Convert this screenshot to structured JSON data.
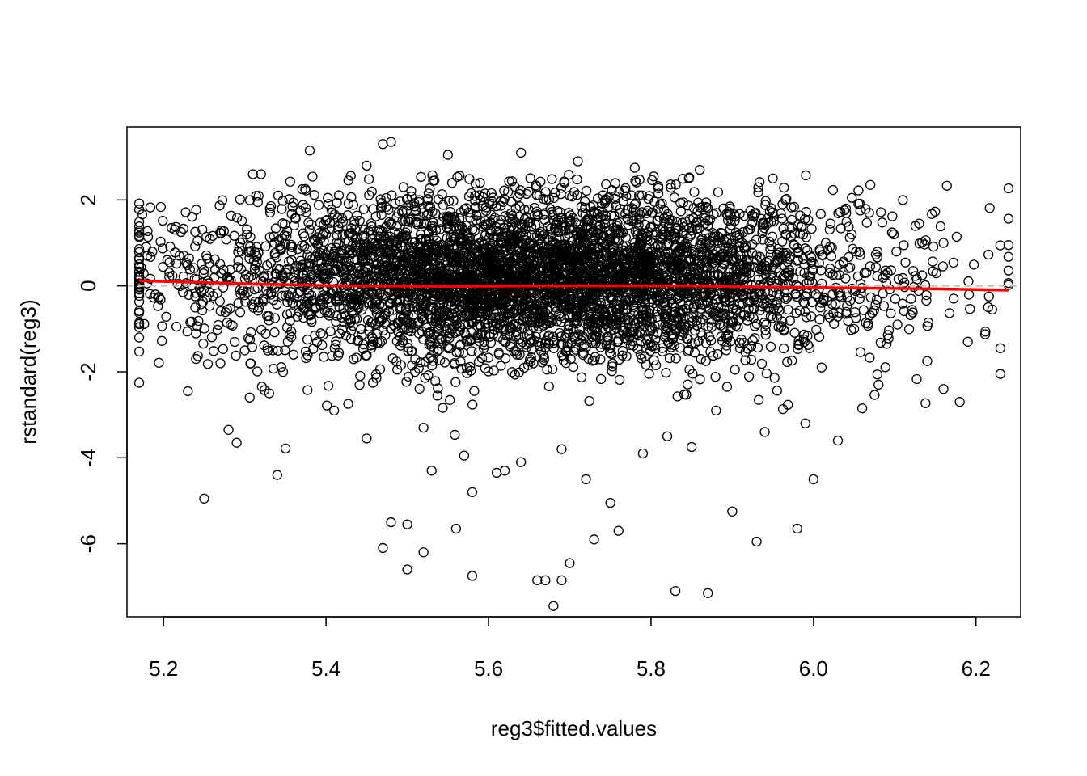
{
  "chart_data": {
    "type": "scatter",
    "title": "",
    "xlabel": "reg3$fitted.values",
    "ylabel": "rstandard(reg3)",
    "xlim": [
      5.155,
      6.255
    ],
    "ylim": [
      -7.7,
      3.7
    ],
    "x_ticks": [
      5.2,
      5.4,
      5.6,
      5.8,
      6.0,
      6.2
    ],
    "x_tick_labels": [
      "5.2",
      "5.4",
      "5.6",
      "5.8",
      "6.0",
      "6.2"
    ],
    "y_ticks": [
      -6,
      -4,
      -2,
      0,
      2
    ],
    "y_tick_labels": [
      "-6",
      "-4",
      "-2",
      "0",
      "2"
    ],
    "reference_line": {
      "y": 0,
      "style": "dashed",
      "color": "#bebebe"
    },
    "smooth_line": {
      "color": "#ff0000",
      "x": [
        5.17,
        5.3,
        5.42,
        5.55,
        5.7,
        5.85,
        5.95,
        6.05,
        6.15,
        6.24
      ],
      "y": [
        0.12,
        0.05,
        0.0,
        -0.01,
        0.0,
        0.0,
        -0.03,
        -0.05,
        -0.07,
        -0.1
      ]
    },
    "point_style": {
      "shape": "open-circle",
      "color": "#000000"
    },
    "points": {
      "x": [
        5.25,
        5.34,
        5.52,
        5.53,
        5.5,
        5.47,
        5.58,
        5.66,
        5.67,
        5.68,
        5.69,
        5.7,
        5.73,
        5.75,
        5.83,
        5.87,
        5.93,
        5.98,
        6.0,
        5.9,
        5.76,
        5.62,
        5.56,
        5.58,
        5.48,
        5.5,
        5.29,
        5.28,
        5.23,
        6.23,
        6.23,
        6.18,
        6.16,
        6.06,
        6.08,
        6.09,
        6.14,
        6.19,
        6.22,
        6.24,
        6.07,
        5.47,
        5.48,
        5.38,
        5.31,
        5.32,
        5.21,
        5.18,
        5.17,
        5.17,
        5.19,
        5.24,
        5.27,
        5.3,
        5.33,
        5.41,
        5.45,
        5.52,
        5.57,
        5.61,
        5.64,
        5.69,
        5.72,
        5.79,
        5.82,
        5.85,
        5.88,
        5.94,
        5.99,
        6.01,
        6.03,
        6.05,
        6.11,
        6.13,
        6.16,
        5.36,
        5.45,
        5.55,
        5.64,
        5.71,
        5.78,
        5.86,
        5.95,
        5.4,
        5.6,
        5.8,
        6.02,
        6.12
      ],
      "y": [
        -4.95,
        -4.4,
        -6.2,
        -4.3,
        -6.6,
        -6.1,
        -6.75,
        -6.85,
        -6.85,
        -7.45,
        -6.85,
        -6.45,
        -5.9,
        -5.05,
        -7.1,
        -7.15,
        -5.95,
        -5.65,
        -4.5,
        -5.25,
        -5.7,
        -4.3,
        -5.65,
        -4.8,
        -5.5,
        -5.55,
        -3.65,
        -3.35,
        -2.45,
        -2.05,
        -1.45,
        -2.7,
        -2.4,
        -2.85,
        -2.3,
        -1.35,
        -1.75,
        -1.3,
        -0.55,
        0.95,
        2.35,
        3.3,
        3.35,
        3.15,
        2.6,
        2.6,
        1.35,
        0.7,
        0.2,
        0.5,
        -0.2,
        -1.7,
        -1.8,
        -1.5,
        -2.5,
        -2.9,
        -3.55,
        -3.3,
        -3.95,
        -4.35,
        -4.1,
        -3.8,
        -4.5,
        -3.9,
        -3.5,
        -3.75,
        -2.9,
        -3.4,
        -3.2,
        -1.9,
        -3.6,
        -1.0,
        2.0,
        1.45,
        1.0,
        -1.6,
        2.8,
        3.05,
        3.1,
        2.9,
        2.75,
        2.7,
        2.5,
        1.2,
        -0.5,
        0.6,
        0.3,
        -0.3
      ]
    },
    "cloud": {
      "x_center": 5.66,
      "x_spread": 0.2,
      "y_center": 0.2,
      "y_spread": 0.95,
      "count": 5000
    }
  }
}
